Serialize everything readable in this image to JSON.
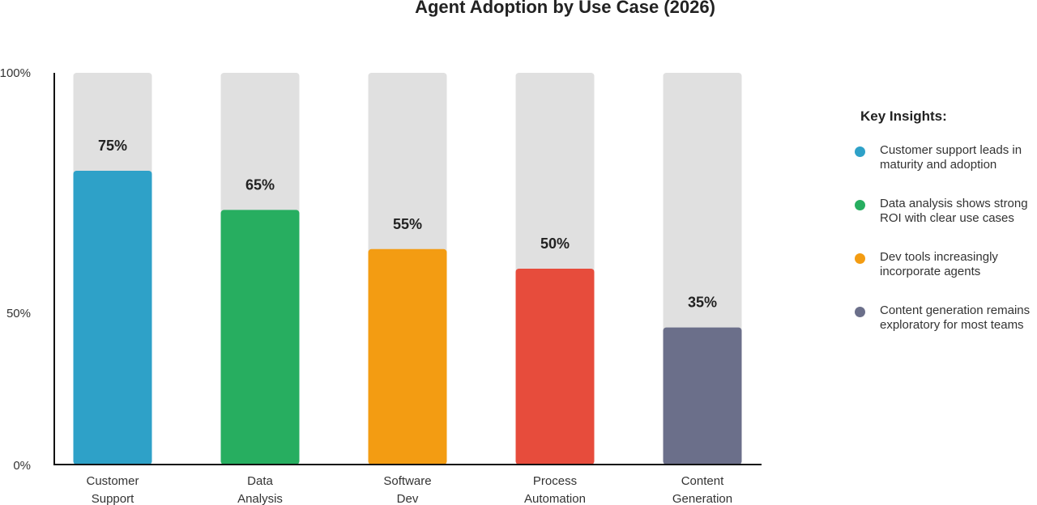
{
  "chart_data": {
    "type": "bar",
    "title": "Agent Adoption by Use Case (2026)",
    "categories": [
      [
        "Customer",
        "Support"
      ],
      [
        "Data",
        "Analysis"
      ],
      [
        "Software",
        "Dev"
      ],
      [
        "Process",
        "Automation"
      ],
      [
        "Content",
        "Generation"
      ]
    ],
    "values": [
      75,
      65,
      55,
      50,
      35
    ],
    "value_labels": [
      "75%",
      "65%",
      "55%",
      "50%",
      "35%"
    ],
    "colors": [
      "#2ea1c8",
      "#27ae60",
      "#f39c12",
      "#e74c3c",
      "#6b6f8a"
    ],
    "track_color": "#e0e0e0",
    "ylim": [
      0,
      100
    ],
    "y_tick_labels": [
      "100%",
      "50%",
      "0%"
    ],
    "xlabel": "",
    "ylabel": "",
    "grid": false
  },
  "insights": {
    "heading": "Key Insights:",
    "items": [
      {
        "text": "Customer support leads in maturity and adoption",
        "color": "#2ea1c8"
      },
      {
        "text": "Data analysis shows strong ROI with clear use cases",
        "color": "#27ae60"
      },
      {
        "text": "Dev tools increasingly incorporate agents",
        "color": "#f39c12"
      },
      {
        "text": "Content generation remains exploratory for most teams",
        "color": "#6b6f8a"
      }
    ]
  }
}
